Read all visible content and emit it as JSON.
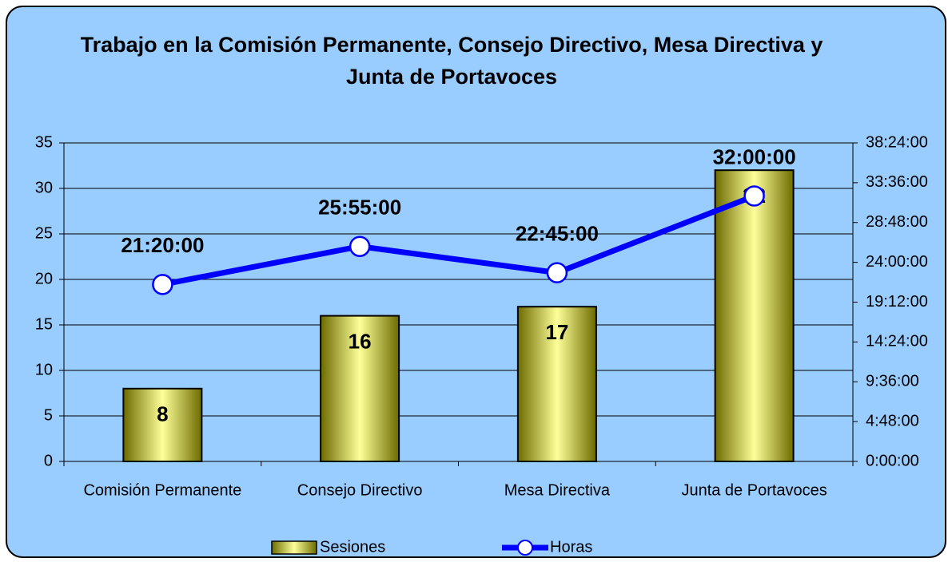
{
  "chart_data": {
    "type": "bar",
    "title": "Trabajo en la Comisión Permanente, Consejo Directivo, Mesa Directiva y Junta de Portavoces",
    "categories": [
      "Comisión Permanente",
      "Consejo Directivo",
      "Mesa Directiva",
      "Junta de Portavoces"
    ],
    "series": [
      {
        "name": "Sesiones",
        "type": "bar",
        "axis": "y",
        "color": "#c8c850",
        "values": [
          8,
          16,
          17,
          32
        ]
      },
      {
        "name": "Horas",
        "type": "line",
        "axis": "y2",
        "color": "#0000ff",
        "values": [
          21.3333,
          25.9167,
          22.75,
          32
        ],
        "value_labels": [
          "21:20:00",
          "25:55:00",
          "22:45:00",
          "32:00:00"
        ]
      }
    ],
    "ylim": [
      0,
      35
    ],
    "yticks": [
      0,
      5,
      10,
      15,
      20,
      25,
      30,
      35
    ],
    "y2lim": [
      0,
      38.4
    ],
    "y2ticks": [
      {
        "value": 0,
        "label": "0:00:00"
      },
      {
        "value": 4.8,
        "label": "4:48:00"
      },
      {
        "value": 9.6,
        "label": "9:36:00"
      },
      {
        "value": 14.4,
        "label": "14:24:00"
      },
      {
        "value": 19.2,
        "label": "19:12:00"
      },
      {
        "value": 24,
        "label": "24:00:00"
      },
      {
        "value": 28.8,
        "label": "28:48:00"
      },
      {
        "value": 33.6,
        "label": "33:36:00"
      },
      {
        "value": 38.4,
        "label": "38:24:00"
      }
    ],
    "grid": true,
    "legend": "bottom"
  }
}
